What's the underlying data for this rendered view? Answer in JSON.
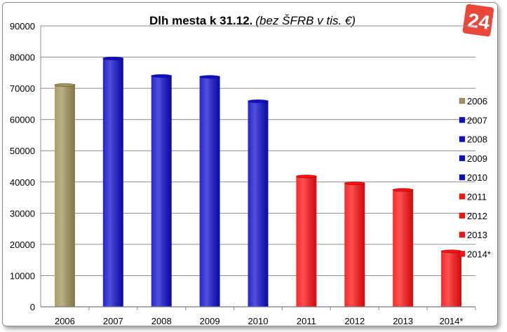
{
  "chart_data": {
    "type": "bar",
    "title": "Dlh mesta k 31.12.",
    "subtitle": "(bez ŠFRB v tis. €)",
    "xlabel": "",
    "ylabel": "",
    "categories": [
      "2006",
      "2007",
      "2008",
      "2009",
      "2010",
      "2011",
      "2012",
      "2013",
      "2014*"
    ],
    "values": [
      71300,
      79800,
      74200,
      73900,
      66100,
      42000,
      39800,
      37700,
      18000
    ],
    "colors": [
      "#a19458",
      "#0d0dcc",
      "#0d0dcc",
      "#0d0dcc",
      "#0d0dcc",
      "#ff0f0f",
      "#ff0f0f",
      "#ff0f0f",
      "#ff0f0f"
    ],
    "ylim": [
      0,
      90000
    ],
    "yticks": [
      0,
      10000,
      20000,
      30000,
      40000,
      50000,
      60000,
      70000,
      80000,
      90000
    ],
    "grid": true,
    "legend": {
      "placement": "right",
      "entries": [
        "2006",
        "2007",
        "2008",
        "2009",
        "2010",
        "2011",
        "2012",
        "2013",
        "2014*"
      ]
    }
  },
  "logo": {
    "text": "24",
    "color": "#e8473a"
  }
}
